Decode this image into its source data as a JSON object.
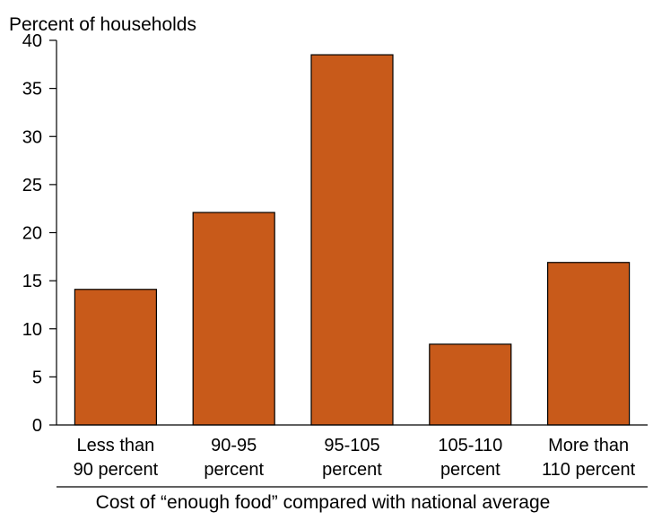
{
  "chart_data": {
    "type": "bar",
    "ylabel": "Percent of households",
    "xlabel": "Cost of “enough food” compared with national average",
    "categories": [
      [
        "Less than",
        "90 percent"
      ],
      [
        "90-95",
        "percent"
      ],
      [
        "95-105",
        "percent"
      ],
      [
        "105-110",
        "percent"
      ],
      [
        "More than",
        "110 percent"
      ]
    ],
    "values": [
      14.1,
      22.1,
      38.5,
      8.4,
      16.9
    ],
    "ylim": [
      0,
      40
    ],
    "yticks": [
      0,
      5,
      10,
      15,
      20,
      25,
      30,
      35,
      40
    ],
    "grid": false,
    "bar_color": "#C85A1A",
    "bar_stroke": "#000000",
    "axis_color": "#000000"
  }
}
